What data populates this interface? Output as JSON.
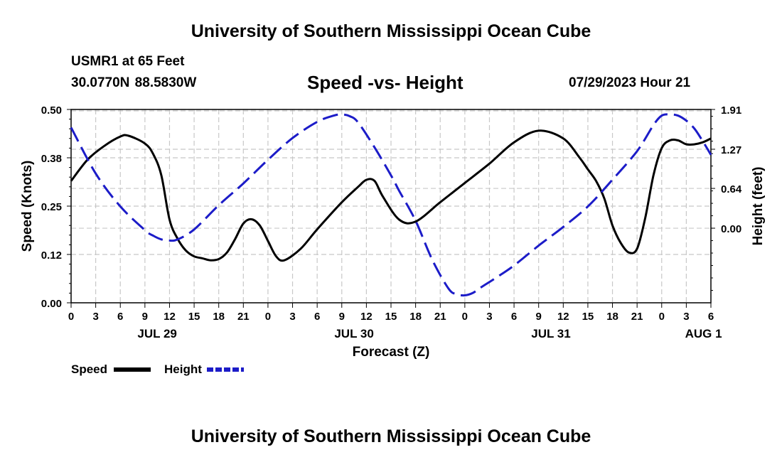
{
  "header": {
    "title": "University of Southern Mississippi Ocean Cube",
    "station": "USMR1 at 65 Feet",
    "coords": "30.0770N  88.5830W",
    "subtitle": "Speed -vs- Height",
    "timestamp": "07/29/2023 Hour 21"
  },
  "footer": {
    "title": "University of Southern Mississippi Ocean Cube"
  },
  "legend": {
    "speed_label": "Speed",
    "height_label": "Height"
  },
  "chart_data": {
    "type": "line",
    "xlabel": "Forecast (Z)",
    "ylabel": "Speed (Knots)",
    "y2label": "Height (feet)",
    "x_ticks": [
      "0",
      "3",
      "6",
      "9",
      "12",
      "15",
      "18",
      "21",
      "0",
      "3",
      "6",
      "9",
      "12",
      "15",
      "18",
      "21",
      "0",
      "3",
      "6",
      "9",
      "12",
      "15",
      "18",
      "21",
      "0",
      "3",
      "6"
    ],
    "date_labels": [
      {
        "label": "JUL 29",
        "tick_index": 3.5
      },
      {
        "label": "JUL 30",
        "tick_index": 11.5
      },
      {
        "label": "JUL 31",
        "tick_index": 19.5
      },
      {
        "label": "AUG 1",
        "tick_index": 25.7
      }
    ],
    "y_left": {
      "min": 0,
      "max": 0.5,
      "ticks": [
        "0.00",
        "0.12",
        "0.25",
        "0.38",
        "0.50"
      ],
      "tick_values": [
        0,
        0.125,
        0.25,
        0.375,
        0.5
      ]
    },
    "y_right": {
      "min": -1.2,
      "max": 1.91,
      "ticks": [
        "0.00",
        "0.64",
        "1.27",
        "1.91"
      ],
      "tick_values": [
        0,
        0.64,
        1.27,
        1.91
      ]
    },
    "series": [
      {
        "name": "Speed",
        "axis": "left",
        "color": "#000000",
        "dash": "solid",
        "x": [
          0,
          2,
          4,
          6,
          7,
          9,
          10,
          11,
          12,
          13,
          14,
          15,
          16,
          17,
          18,
          19,
          20,
          21,
          22,
          23,
          24,
          25,
          26,
          28,
          30,
          33,
          35,
          36,
          37,
          38,
          40,
          42,
          45,
          48,
          51,
          54,
          57,
          60,
          62,
          63,
          64,
          65,
          66,
          67,
          68,
          69,
          70,
          71,
          72,
          73,
          74,
          75,
          76,
          77,
          78
        ],
        "values": [
          0.315,
          0.37,
          0.405,
          0.43,
          0.432,
          0.412,
          0.385,
          0.33,
          0.215,
          0.165,
          0.135,
          0.12,
          0.115,
          0.11,
          0.113,
          0.13,
          0.165,
          0.205,
          0.216,
          0.2,
          0.16,
          0.12,
          0.11,
          0.14,
          0.19,
          0.26,
          0.3,
          0.318,
          0.315,
          0.275,
          0.215,
          0.21,
          0.26,
          0.31,
          0.36,
          0.415,
          0.445,
          0.425,
          0.375,
          0.345,
          0.315,
          0.27,
          0.2,
          0.155,
          0.13,
          0.14,
          0.22,
          0.33,
          0.4,
          0.42,
          0.42,
          0.41,
          0.41,
          0.415,
          0.425
        ]
      },
      {
        "name": "Height",
        "axis": "right",
        "color": "#1c1cc8",
        "dash": "dashed",
        "x": [
          0,
          3,
          6,
          9,
          10,
          11,
          12,
          13,
          15,
          18,
          21,
          24,
          27,
          30,
          32,
          33,
          34,
          35,
          37,
          39,
          40,
          42,
          44,
          46,
          47,
          48,
          49,
          50,
          52,
          54,
          57,
          60,
          63,
          66,
          69,
          71,
          72,
          73,
          74,
          75,
          76,
          77,
          78
        ],
        "values": [
          1.62,
          0.88,
          0.35,
          -0.03,
          -0.12,
          -0.18,
          -0.2,
          -0.18,
          -0.02,
          0.37,
          0.72,
          1.1,
          1.45,
          1.71,
          1.81,
          1.83,
          1.8,
          1.7,
          1.3,
          0.85,
          0.6,
          0.12,
          -0.5,
          -0.97,
          -1.06,
          -1.08,
          -1.04,
          -0.95,
          -0.78,
          -0.6,
          -0.28,
          0.02,
          0.35,
          0.78,
          1.24,
          1.66,
          1.81,
          1.83,
          1.81,
          1.73,
          1.6,
          1.4,
          1.18
        ]
      }
    ]
  }
}
